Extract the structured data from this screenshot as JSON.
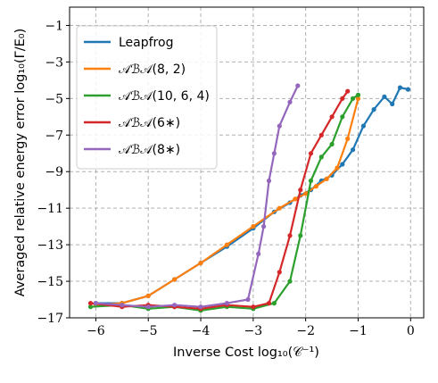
{
  "chart_data": {
    "type": "line",
    "xlabel": "Inverse Cost log₁₀(𝒞⁻¹)",
    "ylabel": "Averaged relative energy error log₁₀(Γ/E₀)",
    "xlim": [
      -6.5,
      0.25
    ],
    "ylim": [
      -17,
      0
    ],
    "xticks": [
      -6,
      -5,
      -4,
      -3,
      -2,
      -1,
      0
    ],
    "yticks": [
      -17,
      -15,
      -13,
      -11,
      -9,
      -7,
      -5,
      -3,
      -1
    ],
    "xtick_labels": [
      "−6",
      "−5",
      "−4",
      "−3",
      "−2",
      "−1",
      "0"
    ],
    "ytick_labels": [
      "−17",
      "−15",
      "−13",
      "−11",
      "−9",
      "−7",
      "−5",
      "−3",
      "−1"
    ],
    "grid": true,
    "grid_style": "dashed",
    "legend_position": "top-left",
    "series": [
      {
        "name": "Leapfrog",
        "color": "#1f77b4",
        "x": [
          -6.0,
          -5.5,
          -5.0,
          -4.5,
          -4.0,
          -3.5,
          -3.0,
          -2.6,
          -2.3,
          -2.1,
          -1.9,
          -1.7,
          -1.5,
          -1.3,
          -1.1,
          -0.9,
          -0.7,
          -0.5,
          -0.35,
          -0.2,
          -0.05
        ],
        "y": [
          -16.2,
          -16.2,
          -15.8,
          -14.9,
          -14.0,
          -13.1,
          -12.1,
          -11.2,
          -10.7,
          -10.3,
          -10.0,
          -9.5,
          -9.2,
          -8.6,
          -7.8,
          -6.5,
          -5.6,
          -4.9,
          -5.3,
          -4.4,
          -4.5
        ]
      },
      {
        "name": "𝒜ℬ𝒜(8, 2)",
        "color": "#ff7f0e",
        "x": [
          -6.0,
          -5.5,
          -5.0,
          -4.5,
          -4.0,
          -3.5,
          -3.0,
          -2.5,
          -2.2,
          -2.0,
          -1.8,
          -1.6,
          -1.4,
          -1.2,
          -1.0
        ],
        "y": [
          -16.3,
          -16.2,
          -15.8,
          -14.9,
          -14.0,
          -13.0,
          -12.0,
          -11.0,
          -10.5,
          -10.2,
          -9.8,
          -9.4,
          -8.8,
          -7.2,
          -5.0
        ]
      },
      {
        "name": "𝒜ℬ𝒜(10, 6, 4)",
        "color": "#2ca02c",
        "x": [
          -6.1,
          -5.5,
          -5.0,
          -4.5,
          -4.0,
          -3.5,
          -3.0,
          -2.6,
          -2.3,
          -2.1,
          -1.9,
          -1.7,
          -1.5,
          -1.3,
          -1.1,
          -1.0
        ],
        "y": [
          -16.4,
          -16.3,
          -16.5,
          -16.4,
          -16.6,
          -16.4,
          -16.5,
          -16.2,
          -15.0,
          -12.5,
          -9.5,
          -8.2,
          -7.5,
          -6.0,
          -5.0,
          -4.8
        ]
      },
      {
        "name": "𝒜ℬ𝒜(6∗)",
        "color": "#d62728",
        "x": [
          -6.1,
          -5.5,
          -5.0,
          -4.5,
          -4.0,
          -3.5,
          -3.0,
          -2.7,
          -2.5,
          -2.3,
          -2.1,
          -1.9,
          -1.7,
          -1.5,
          -1.3,
          -1.2
        ],
        "y": [
          -16.2,
          -16.4,
          -16.3,
          -16.4,
          -16.5,
          -16.3,
          -16.4,
          -16.2,
          -14.5,
          -12.5,
          -10.0,
          -8.0,
          -7.0,
          -6.0,
          -5.0,
          -4.6
        ]
      },
      {
        "name": "𝒜ℬ𝒜(8∗)",
        "color": "#9467bd",
        "x": [
          -6.0,
          -5.5,
          -5.0,
          -4.5,
          -4.0,
          -3.5,
          -3.1,
          -2.9,
          -2.8,
          -2.7,
          -2.6,
          -2.5,
          -2.3,
          -2.15
        ],
        "y": [
          -16.2,
          -16.3,
          -16.4,
          -16.3,
          -16.4,
          -16.2,
          -16.0,
          -13.5,
          -12.0,
          -9.5,
          -8.0,
          -6.5,
          -5.2,
          -4.3
        ]
      }
    ]
  }
}
